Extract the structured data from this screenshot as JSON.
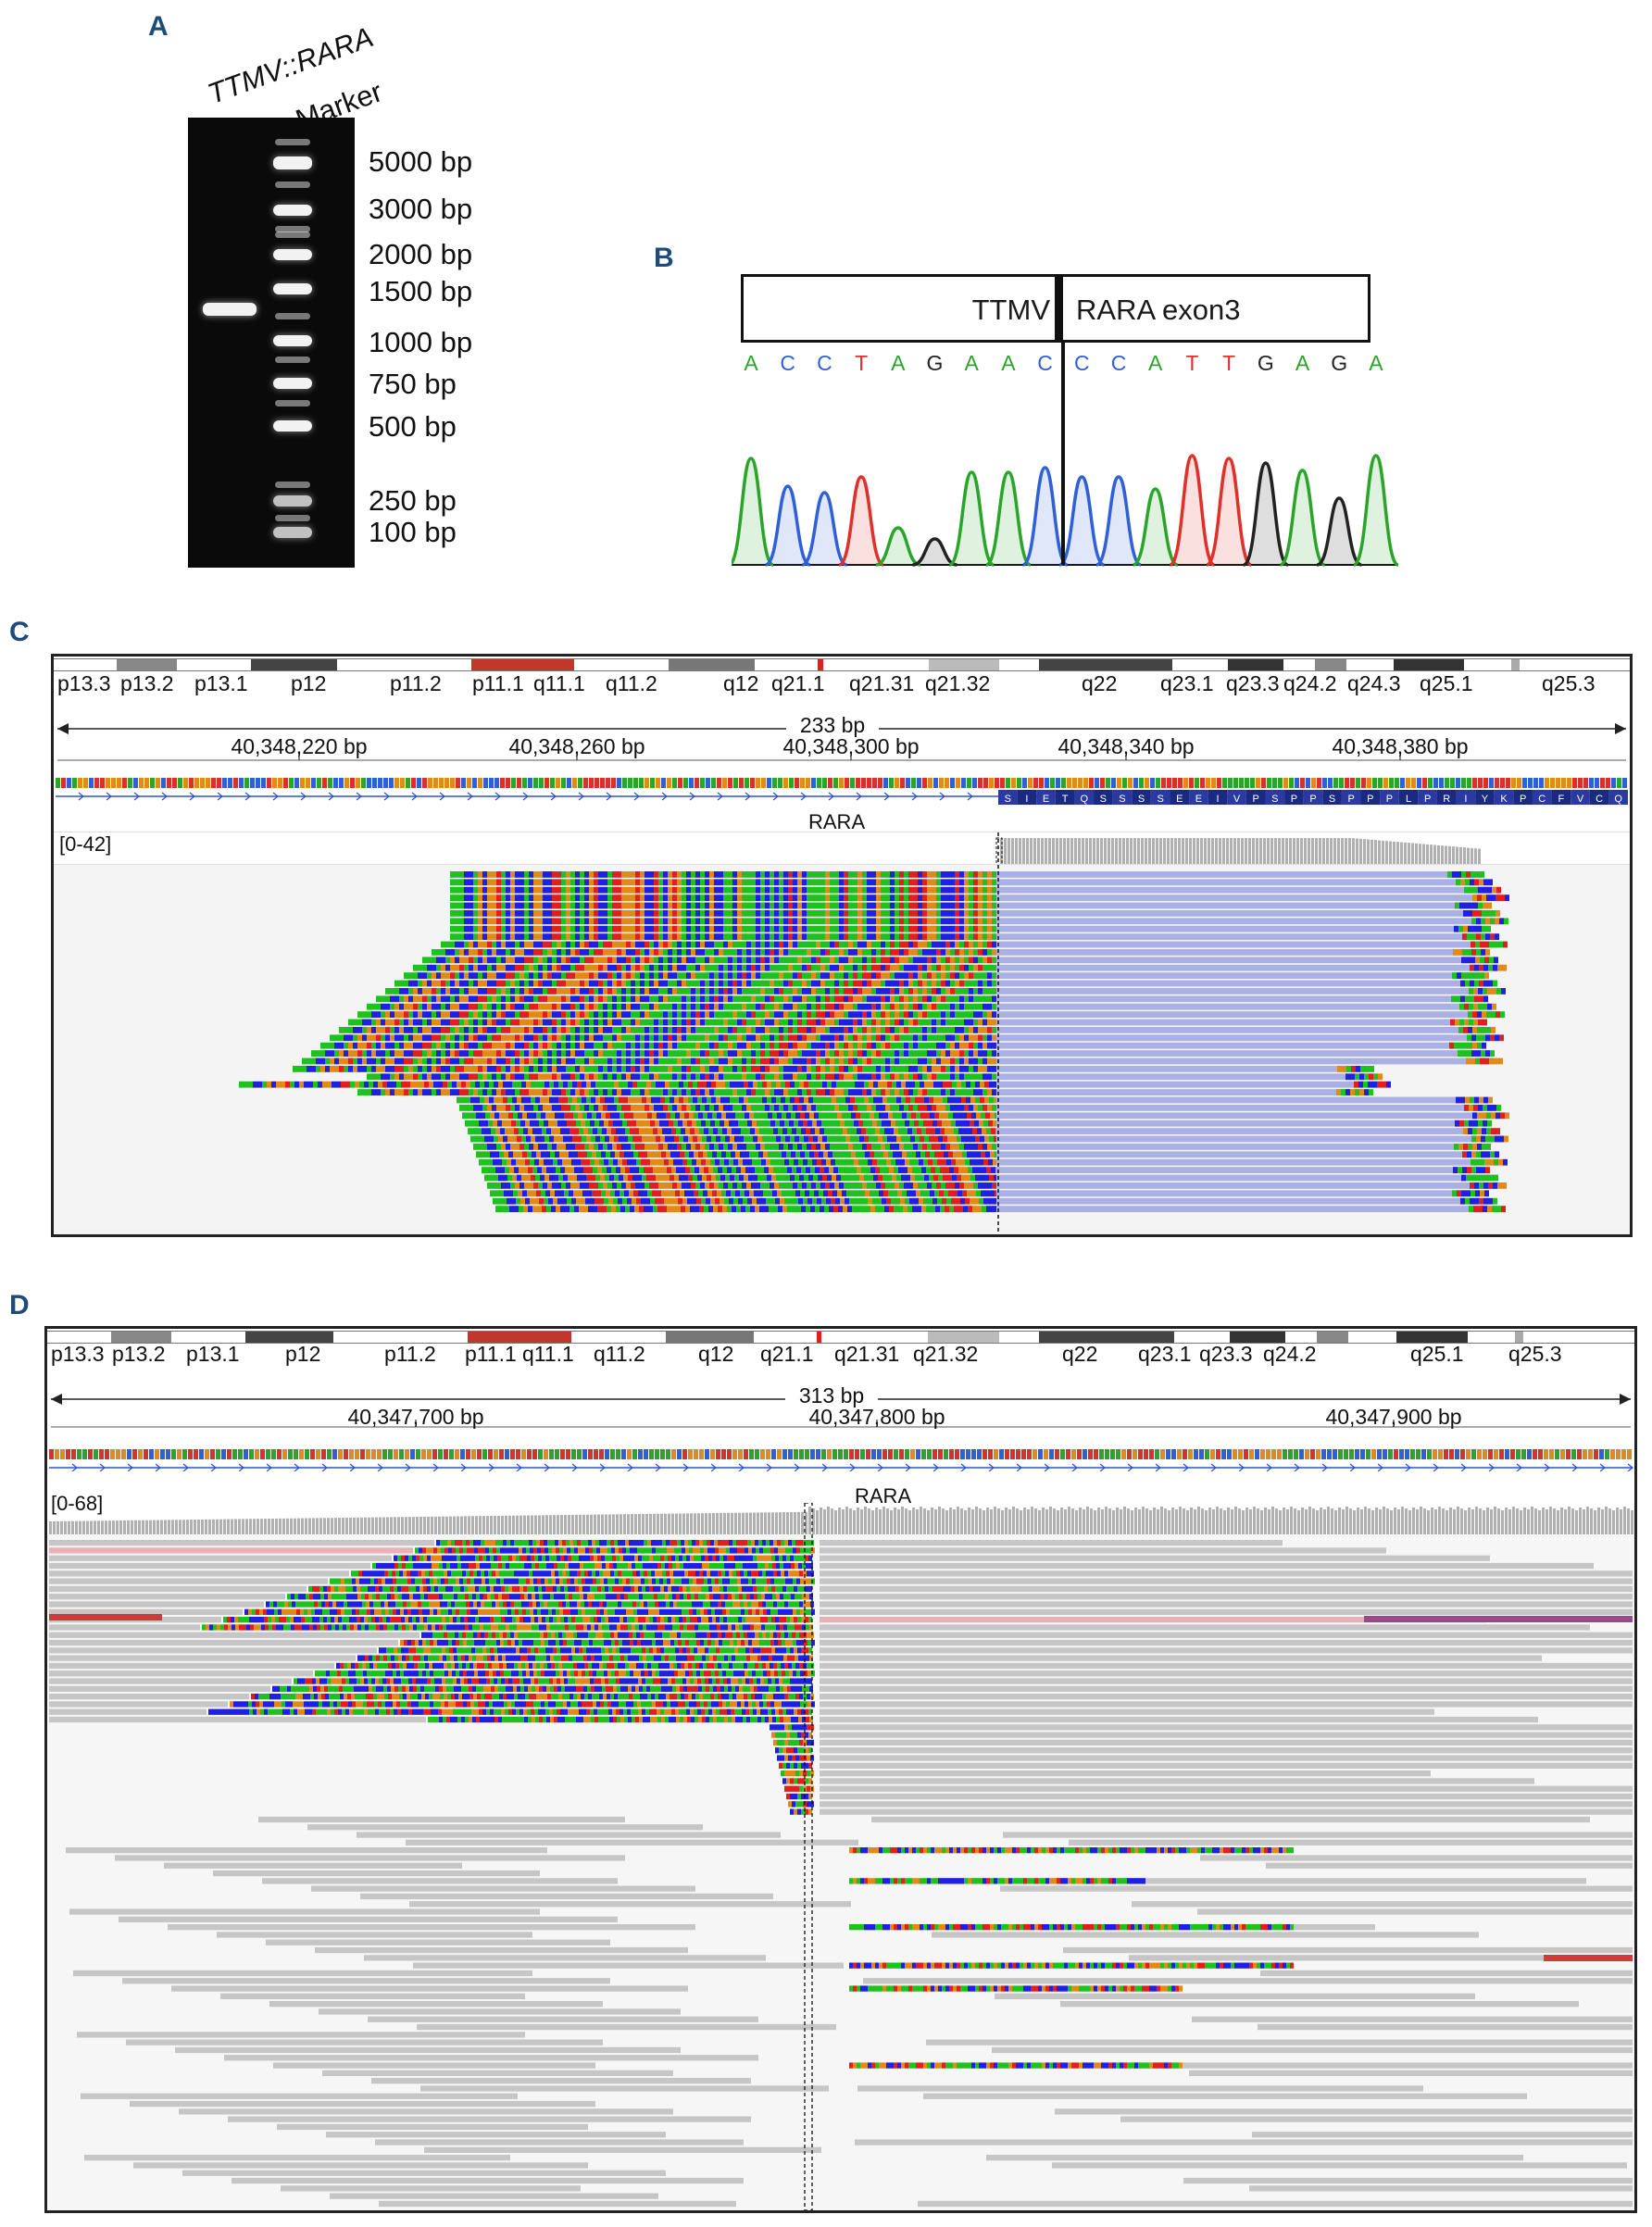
{
  "panels": {
    "a": "A",
    "b": "B",
    "c": "C",
    "d": "D"
  },
  "panel_a": {
    "lane_labels": [
      "TTMV::RARA",
      "Marker"
    ],
    "marker_labels": [
      "5000 bp",
      "3000 bp",
      "2000 bp",
      "1500 bp",
      "1000 bp",
      "750 bp",
      "500 bp",
      "250 bp",
      "100 bp"
    ],
    "marker_sizes_bp": [
      5000,
      3000,
      2000,
      1500,
      1000,
      750,
      500,
      250,
      100
    ],
    "sample_band_bp": 1400
  },
  "panel_b": {
    "left_box": "TTMV",
    "right_box": "RARA exon3",
    "bases": [
      "A",
      "C",
      "C",
      "T",
      "A",
      "G",
      "A",
      "A",
      "C",
      "C",
      "C",
      "A",
      "T",
      "T",
      "G",
      "A",
      "G",
      "A"
    ],
    "base_colors": {
      "A": "#2aa52a",
      "C": "#3060d8",
      "T": "#e0302a",
      "G": "#222222"
    }
  },
  "panel_c": {
    "cytobands": [
      "p13.3",
      "p13.2",
      "p13.1",
      "p12",
      "p11.2",
      "p11.1",
      "q11.1",
      "q11.2",
      "q12",
      "q21.1",
      "q21.31",
      "q21.32",
      "q22",
      "q23.1",
      "q23.3",
      "q24.2",
      "q24.3",
      "q25.1",
      "q25.3"
    ],
    "span": "233 bp",
    "ticks": [
      "40,348,220 bp",
      "40,348,260 bp",
      "40,348,300 bp",
      "40,348,340 bp",
      "40,348,380 bp"
    ],
    "gene": "RARA",
    "range": "[0-42]",
    "amino_acids": [
      "S",
      "I",
      "E",
      "T",
      "Q",
      "S",
      "S",
      "S",
      "S",
      "E",
      "E",
      "I",
      "V",
      "P",
      "S",
      "P",
      "P",
      "S",
      "P",
      "P",
      "P",
      "L",
      "P",
      "R",
      "I",
      "Y",
      "K",
      "P",
      "C",
      "F",
      "V",
      "C",
      "Q"
    ]
  },
  "panel_d": {
    "cytobands": [
      "p13.3",
      "p13.2",
      "p13.1",
      "p12",
      "p11.2",
      "p11.1",
      "q11.1",
      "q11.2",
      "q12",
      "q21.1",
      "q21.31",
      "q21.32",
      "q22",
      "q23.1",
      "q23.3",
      "q24.2",
      "q25.1",
      "q25.3"
    ],
    "span": "313 bp",
    "ticks": [
      "40,347,700 bp",
      "40,347,800 bp",
      "40,347,900 bp"
    ],
    "gene": "RARA",
    "range": "[0-68]"
  }
}
